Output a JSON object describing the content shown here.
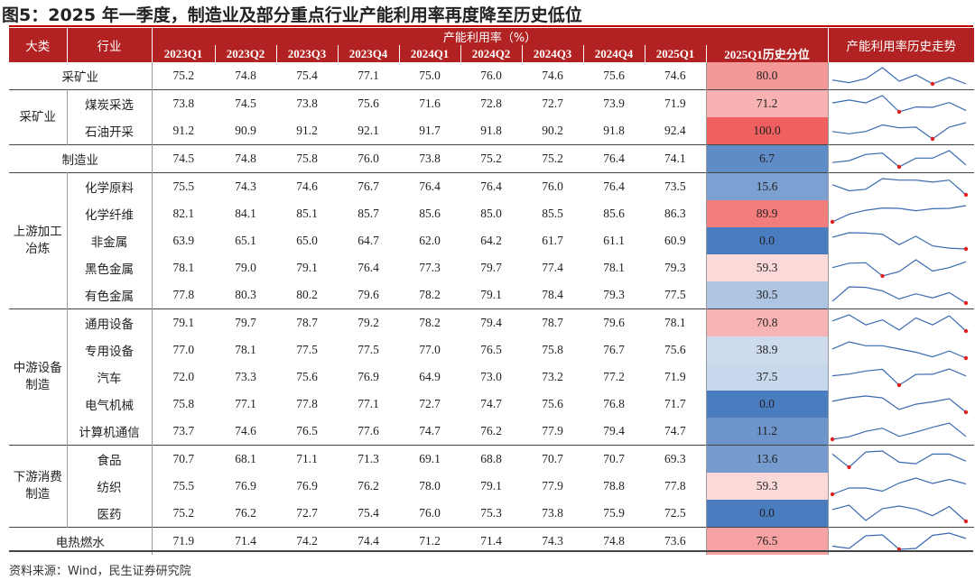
{
  "title": "图5：2025 年一季度，制造业及部分重点行业产能利用率再度降至历史低位",
  "source": "资料来源：Wind，民生证券研究院",
  "colors": {
    "header_bg": "#b22222",
    "high": "#f06060",
    "low": "#4a7cc0",
    "spark_line": "#3a6ab0",
    "spark_min": "#e02020"
  },
  "headers": {
    "major": "大类",
    "industry": "行业",
    "group": "产能利用率（%）",
    "quarters": [
      "2023Q1",
      "2023Q2",
      "2023Q3",
      "2023Q4",
      "2024Q1",
      "2024Q2",
      "2024Q3",
      "2024Q4",
      "2025Q1"
    ],
    "percentile": "2025Q1历史分位",
    "trend": "产能利用率历史走势"
  },
  "chart_data": {
    "type": "table",
    "columns": [
      "2023Q1",
      "2023Q2",
      "2023Q3",
      "2023Q4",
      "2024Q1",
      "2024Q2",
      "2024Q3",
      "2024Q4",
      "2025Q1",
      "2025Q1历史分位"
    ],
    "groups": [
      {
        "name": "采矿业",
        "rows": [
          {
            "name": "采矿业",
            "values": [
              75.2,
              74.8,
              75.4,
              77.1,
              75.0,
              76.0,
              74.6,
              75.6,
              74.6
            ],
            "percentile": "80.0",
            "p": 80.0
          }
        ]
      },
      {
        "name": "采矿业",
        "rows": [
          {
            "name": "煤炭采选",
            "values": [
              73.8,
              74.5,
              73.8,
              75.6,
              71.6,
              72.8,
              72.7,
              73.9,
              71.9
            ],
            "percentile": "71.2",
            "p": 71.2
          },
          {
            "name": "石油开采",
            "values": [
              91.2,
              90.9,
              91.2,
              92.1,
              91.7,
              91.8,
              90.2,
              91.8,
              92.4
            ],
            "percentile": "100.0",
            "p": 100.0
          }
        ]
      },
      {
        "name": "制造业",
        "rows": [
          {
            "name": "制造业",
            "values": [
              74.5,
              74.8,
              75.8,
              76.0,
              73.8,
              75.2,
              75.2,
              76.4,
              74.1
            ],
            "percentile": "6.7",
            "p": 6.7
          }
        ]
      },
      {
        "name": "上游加工冶炼",
        "rows": [
          {
            "name": "化学原料",
            "values": [
              75.5,
              74.3,
              74.6,
              76.7,
              76.4,
              76.4,
              76.0,
              76.4,
              73.5
            ],
            "percentile": "15.6",
            "p": 15.6
          },
          {
            "name": "化学纤维",
            "values": [
              82.1,
              84.1,
              85.1,
              85.7,
              85.6,
              85.0,
              85.5,
              85.6,
              86.3
            ],
            "percentile": "89.9",
            "p": 89.9
          },
          {
            "name": "非金属",
            "values": [
              63.9,
              65.1,
              65.0,
              64.7,
              62.0,
              64.2,
              61.7,
              61.1,
              60.9
            ],
            "percentile": "0.0",
            "p": 0.0
          },
          {
            "name": "黑色金属",
            "values": [
              78.1,
              79.0,
              79.1,
              76.4,
              77.3,
              79.7,
              77.4,
              78.1,
              79.3
            ],
            "percentile": "59.3",
            "p": 59.3
          },
          {
            "name": "有色金属",
            "values": [
              77.8,
              80.3,
              80.2,
              79.6,
              78.2,
              79.1,
              78.4,
              79.3,
              77.5
            ],
            "percentile": "30.5",
            "p": 30.5
          }
        ]
      },
      {
        "name": "中游设备制造",
        "rows": [
          {
            "name": "通用设备",
            "values": [
              79.1,
              79.7,
              78.7,
              79.2,
              78.2,
              79.4,
              78.7,
              79.6,
              78.1
            ],
            "percentile": "70.8",
            "p": 70.8
          },
          {
            "name": "专用设备",
            "values": [
              77.0,
              78.1,
              77.5,
              77.5,
              77.0,
              76.5,
              75.8,
              76.7,
              75.6
            ],
            "percentile": "38.9",
            "p": 38.9
          },
          {
            "name": "汽车",
            "values": [
              72.0,
              73.3,
              75.6,
              76.9,
              64.9,
              73.0,
              73.2,
              77.2,
              71.9
            ],
            "percentile": "37.5",
            "p": 37.5
          },
          {
            "name": "电气机械",
            "values": [
              75.8,
              77.1,
              77.8,
              77.1,
              72.7,
              74.7,
              75.6,
              76.8,
              71.7
            ],
            "percentile": "0.0",
            "p": 0.0
          },
          {
            "name": "计算机通信",
            "values": [
              73.7,
              74.6,
              76.5,
              77.6,
              74.7,
              76.2,
              77.9,
              79.4,
              74.7
            ],
            "percentile": "11.2",
            "p": 11.2
          }
        ]
      },
      {
        "name": "下游消费制造",
        "rows": [
          {
            "name": "食品",
            "values": [
              70.7,
              68.1,
              71.1,
              71.3,
              69.1,
              68.8,
              70.7,
              70.7,
              69.3
            ],
            "percentile": "13.6",
            "p": 13.6
          },
          {
            "name": "纺织",
            "values": [
              75.5,
              76.9,
              76.9,
              76.2,
              78.0,
              79.1,
              77.9,
              78.8,
              77.8
            ],
            "percentile": "59.3",
            "p": 59.3
          },
          {
            "name": "医药",
            "values": [
              75.2,
              76.2,
              72.7,
              75.4,
              76.0,
              75.3,
              73.8,
              75.9,
              72.5
            ],
            "percentile": "0.0",
            "p": 0.0
          }
        ]
      },
      {
        "name": "电热燃水",
        "rows": [
          {
            "name": "电热燃水",
            "values": [
              71.9,
              71.4,
              74.2,
              74.4,
              71.2,
              71.4,
              74.3,
              74.8,
              73.6
            ],
            "percentile": "76.5",
            "p": 76.5
          }
        ]
      }
    ]
  }
}
